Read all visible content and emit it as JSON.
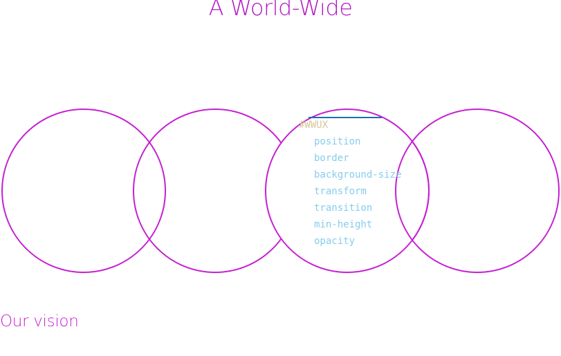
{
  "header": {
    "title": "A World-Wide"
  },
  "code": {
    "selector": "#WWUX",
    "properties": [
      "position",
      "border",
      "background-size",
      "transform",
      "transition",
      "min-height",
      "opacity"
    ]
  },
  "sections": {
    "vision_title": "Our vision"
  },
  "colors": {
    "circle_stroke": "#c51fd2",
    "highlight": "#ffff00",
    "title": "#b316c4",
    "code_selector": "#d8c59a",
    "code_property": "#86cdee",
    "code_rule": "#1a6fb0"
  }
}
